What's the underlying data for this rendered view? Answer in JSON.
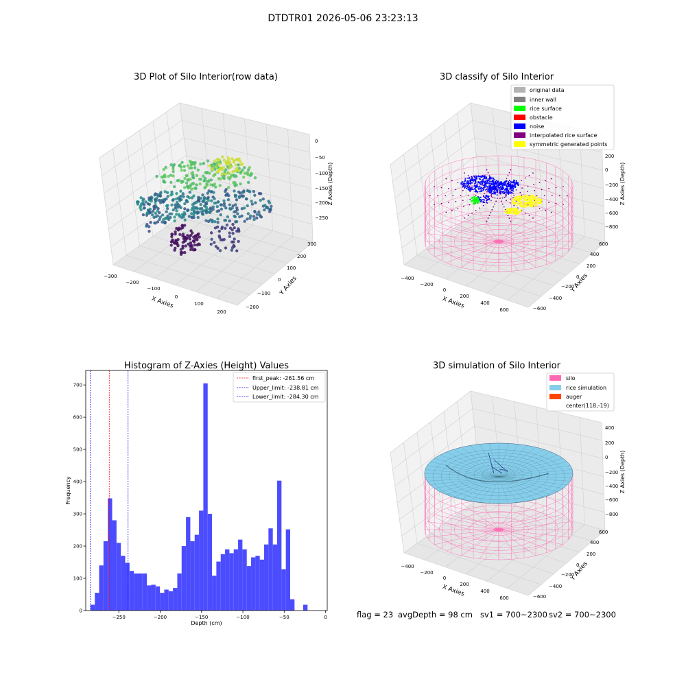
{
  "suptitle": "DTDTR01 2026-05-06 23:23:13",
  "footer": {
    "flag": "flag = 23",
    "avg_depth": "avgDepth = 98 cm",
    "sv1": "sv1 = 700~2300",
    "sv2": "sv2 = 700~2300"
  },
  "colors": {
    "original_data": "#b3b3b3",
    "inner_wall": "#808080",
    "rice_surface": "#00ff00",
    "obstacle": "#ff0000",
    "noise": "#0000ff",
    "interpolated_rice_surface": "#800080",
    "symmetric_generated_points": "#ffff00",
    "silo": "#ff69b4",
    "rice_simulation": "#87ceeb",
    "auger": "#ff4500",
    "histogram_bars": "#4c4cff",
    "first_peak_line": "#ff0000",
    "limit_lines": "#0000ff"
  },
  "panel1": {
    "title": "3D Plot of Silo Interior(row data)",
    "xlabel": "X Axies",
    "ylabel": "Y Axies",
    "zlabel": "Z Axies (Depth)",
    "x_ticks": [
      "−300",
      "−200",
      "−100",
      "0",
      "100",
      "200"
    ],
    "y_ticks": [
      "−200",
      "−100",
      "0",
      "100",
      "200",
      "300"
    ],
    "z_ticks": [
      "0",
      "−50",
      "−100",
      "−150",
      "−200",
      "−250"
    ]
  },
  "panel2": {
    "title": "3D classify of Silo Interior",
    "xlabel": "X Axies",
    "ylabel": "Y Axies",
    "zlabel": "Z Axies (Depth)",
    "x_ticks": [
      "−400",
      "−200",
      "0",
      "200",
      "400",
      "600"
    ],
    "y_ticks": [
      "−600",
      "−400",
      "−200",
      "0",
      "200",
      "400",
      "600"
    ],
    "z_ticks": [
      "200",
      "0",
      "−200",
      "−400",
      "−600",
      "−800"
    ],
    "legend": [
      {
        "label": "original data",
        "color": "#b3b3b3"
      },
      {
        "label": "inner wall",
        "color": "#808080"
      },
      {
        "label": "rice surface",
        "color": "#00ff00"
      },
      {
        "label": "obstacle",
        "color": "#ff0000"
      },
      {
        "label": "noise",
        "color": "#0000ff"
      },
      {
        "label": "interpolated rice surface",
        "color": "#800080"
      },
      {
        "label": "symmetric generated points",
        "color": "#ffff00"
      }
    ]
  },
  "panel4": {
    "title": "3D simulation of Silo Interior",
    "xlabel": "X Axies",
    "ylabel": "Y Axies",
    "zlabel": "Z Axies (Depth)",
    "x_ticks": [
      "−400",
      "−200",
      "0",
      "200",
      "400",
      "600"
    ],
    "y_ticks": [
      "−600",
      "−400",
      "−200",
      "0",
      "200",
      "400",
      "600"
    ],
    "z_ticks": [
      "400",
      "200",
      "0",
      "−200",
      "−400",
      "−600",
      "−800"
    ],
    "legend": [
      {
        "label": "silo",
        "color": "#ff69b4"
      },
      {
        "label": "rice simulation",
        "color": "#87ceeb"
      },
      {
        "label": "auger",
        "color": "#ff4500"
      },
      {
        "label": "center(118,-19)",
        "color": ""
      }
    ]
  },
  "chart_data": [
    {
      "type": "scatter",
      "title": "3D Plot of Silo Interior(row data)",
      "xlabel": "X Axies",
      "ylabel": "Y Axies",
      "zlabel": "Z Axies (Depth)",
      "xlim": [
        -330,
        230
      ],
      "ylim": [
        -230,
        330
      ],
      "zlim": [
        -290,
        10
      ],
      "colormap": "viridis"
    },
    {
      "type": "scatter",
      "title": "3D classify of Silo Interior",
      "xlabel": "X Axies",
      "ylabel": "Y Axies",
      "zlabel": "Z Axies (Depth)",
      "xlim": [
        -500,
        700
      ],
      "ylim": [
        -650,
        650
      ],
      "zlim": [
        -900,
        250
      ]
    },
    {
      "type": "bar",
      "title": "Histogram of Z-Axies (Height) Values",
      "xlabel": "Depth (cm)",
      "ylabel": "Frequency",
      "xlim": [
        -290,
        2
      ],
      "ylim": [
        0,
        745
      ],
      "x_ticks": [
        -250,
        -200,
        -150,
        -100,
        -50,
        0
      ],
      "x_tick_labels": [
        "−250",
        "−200",
        "−150",
        "−100",
        "−50",
        "0"
      ],
      "y_ticks": [
        0,
        100,
        200,
        300,
        400,
        500,
        600,
        700
      ],
      "bin_start": -284.3,
      "bin_width": 5.25,
      "values": [
        18,
        55,
        140,
        215,
        348,
        280,
        210,
        170,
        148,
        123,
        115,
        115,
        115,
        78,
        80,
        75,
        55,
        65,
        60,
        70,
        115,
        200,
        290,
        215,
        235,
        310,
        705,
        300,
        108,
        152,
        175,
        190,
        178,
        190,
        220,
        190,
        138,
        165,
        170,
        158,
        205,
        255,
        205,
        403,
        128,
        252,
        35,
        0,
        0,
        18
      ],
      "vlines": [
        {
          "label": "first_peak: -261.56 cm",
          "x": -261.56,
          "color": "#ff0000"
        },
        {
          "label": "Upper_limit: -238.81 cm",
          "x": -238.81,
          "color": "#0000ff"
        },
        {
          "label": "Lower_limit: -284.30 cm",
          "x": -284.3,
          "color": "#0000ff"
        }
      ],
      "legend_position": "top-right"
    },
    {
      "type": "surface",
      "title": "3D simulation of Silo Interior",
      "xlabel": "X Axies",
      "ylabel": "Y Axies",
      "zlabel": "Z Axies (Depth)",
      "xlim": [
        -500,
        700
      ],
      "ylim": [
        -650,
        650
      ],
      "zlim": [
        -900,
        450
      ]
    }
  ]
}
